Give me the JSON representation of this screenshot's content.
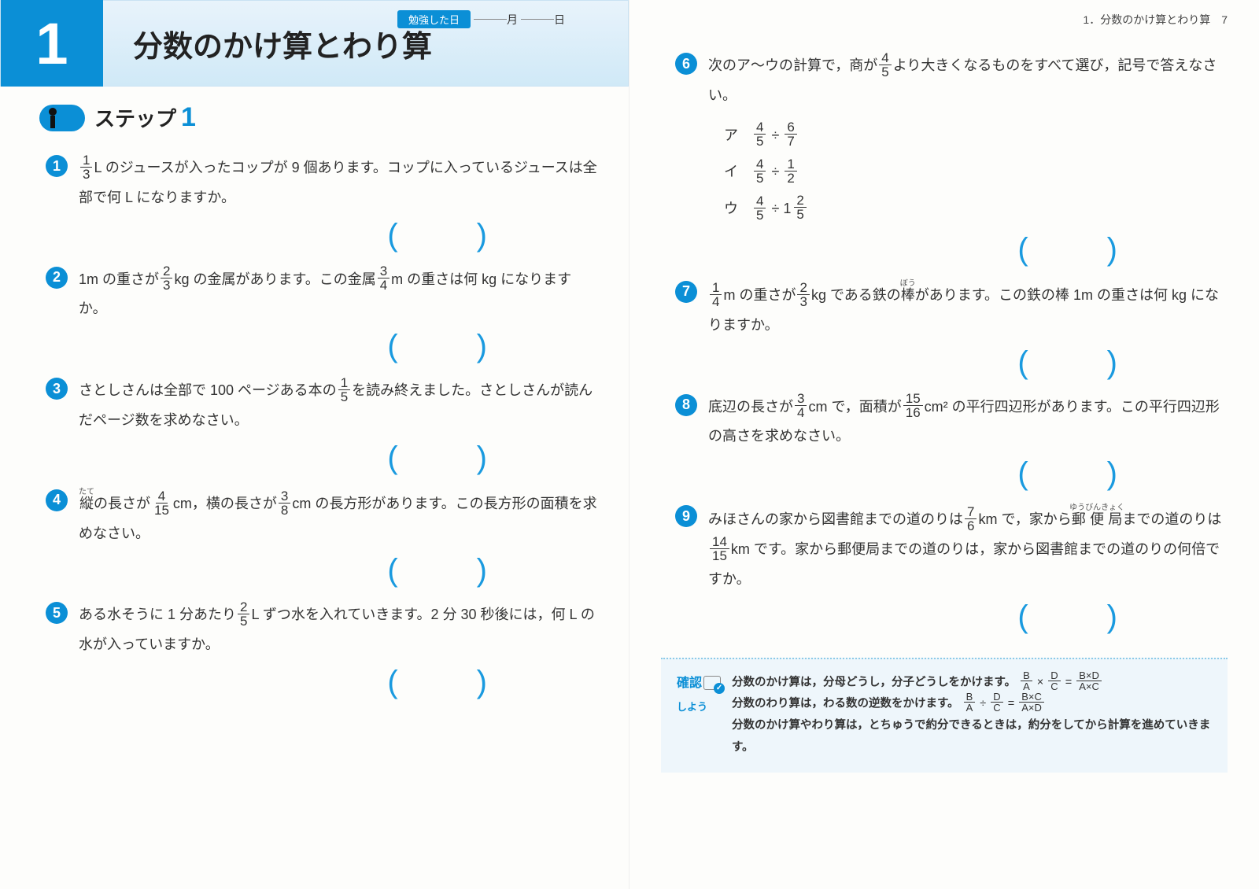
{
  "header": {
    "chapter_num": "1",
    "title": "分数のかけ算とわり算",
    "date_label": "勉強した日",
    "month_suffix": "月",
    "day_suffix": "日"
  },
  "step": {
    "label": "ステップ",
    "num": "1"
  },
  "right_page_header": "1．分数のかけ算とわり算　7",
  "problems": {
    "p1": {
      "num": "1",
      "t1": "L のジュースが入ったコップが 9 個あります。コップに入っているジュースは全部で何 L になりますか。"
    },
    "p2": {
      "num": "2",
      "t1": "1m の重さが",
      "t2": "kg の金属があります。この金属",
      "t3": "m の重さは何 kg になりますか。"
    },
    "p3": {
      "num": "3",
      "t1": "さとしさんは全部で 100 ページある本の",
      "t2": "を読み終えました。さとしさんが読んだページ数を求めなさい。"
    },
    "p4": {
      "num": "4",
      "ruby1": "たて",
      "w1": "縦",
      "t1": "の長さが",
      "t2": "cm，横の長さが",
      "t3": "cm の長方形があります。この長方形の面積を求めなさい。"
    },
    "p5": {
      "num": "5",
      "t1": "ある水そうに 1 分あたり",
      "t2": "L ずつ水を入れていきます。2 分 30 秒後には，何 L の水が入っていますか。"
    },
    "p6": {
      "num": "6",
      "t1": "次のア〜ウの計算で，商が",
      "t2": "より大きくなるものをすべて選び，記号で答えなさい。",
      "oa": "ア",
      "ob": "イ",
      "oc": "ウ"
    },
    "p7": {
      "num": "7",
      "t1": "m の重さが",
      "t2": "kg である鉄の",
      "ruby1": "ぼう",
      "w1": "棒",
      "t3": "があります。この鉄の棒 1m の重さは何 kg になりますか。"
    },
    "p8": {
      "num": "8",
      "t1": "底辺の長さが",
      "t2": "cm で，面積が",
      "t3": "cm² の平行四辺形があります。この平行四辺形の高さを求めなさい。"
    },
    "p9": {
      "num": "9",
      "t1": "みほさんの家から図書館までの道のりは",
      "t2": "km で，家から",
      "ruby1": "ゆうびんきょく",
      "w1": "郵便局",
      "t3": "までの道のりは",
      "t4": "km です。家から郵便局までの道のりは，家から図書館までの道のりの何倍ですか。"
    }
  },
  "kakunin": {
    "label_top": "確認",
    "label_bottom": "しよう",
    "line1a": "分数のかけ算は，分母どうし，分子どうしをかけます。",
    "line2a": "分数のわり算は，わる数の逆数をかけます。",
    "line3": "分数のかけ算やわり算は，とちゅうで約分できるときは，約分をしてから計算を進めていきます。"
  },
  "colors": {
    "primary": "#0b8fd6",
    "header_bg_top": "#e8f3fb",
    "header_bg_bottom": "#d0e9f7",
    "bracket": "#1a9adf",
    "kakunin_bg": "#eef6fb"
  }
}
